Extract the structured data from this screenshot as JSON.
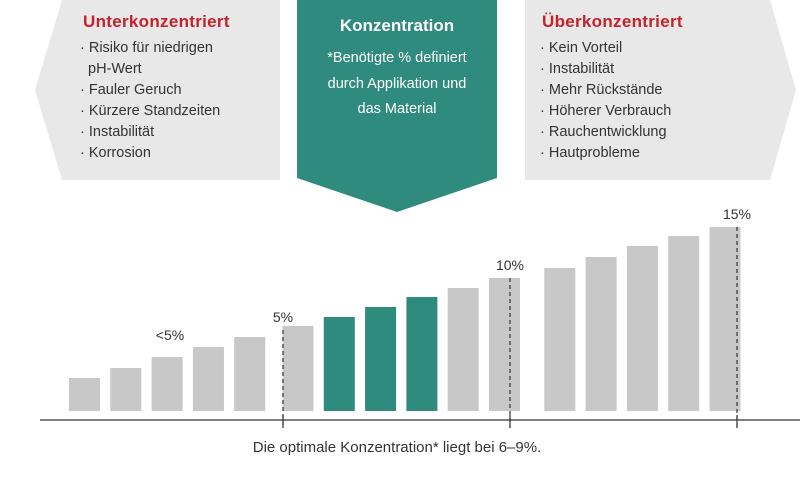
{
  "left_panel": {
    "title": "Unterkonzentriert",
    "items": [
      [
        "Risiko für niedrigen",
        "pH-Wert"
      ],
      [
        "Fauler Geruch"
      ],
      [
        "Kürzere Standzeiten"
      ],
      [
        "Instabilität"
      ],
      [
        "Korrosion"
      ]
    ]
  },
  "center_panel": {
    "title": "Konzentration",
    "lines": [
      "*Benötigte % definiert",
      "durch Applikation und",
      "das Material"
    ]
  },
  "right_panel": {
    "title": "Überkonzentriert",
    "items": [
      [
        "Kein Vorteil"
      ],
      [
        "Instabilität"
      ],
      [
        "Mehr Rückstände"
      ],
      [
        "Höherer Verbrauch"
      ],
      [
        "Rauchentwicklung"
      ],
      [
        "Hautprobleme"
      ]
    ]
  },
  "chart_data": {
    "type": "bar",
    "values": [
      33,
      43,
      54,
      64,
      74,
      85,
      94,
      104,
      114,
      123,
      133,
      143,
      154,
      165,
      175,
      184
    ],
    "colors": [
      "#c8c8c8",
      "#c8c8c8",
      "#c8c8c8",
      "#c8c8c8",
      "#c8c8c8",
      "#c8c8c8",
      "#2e8b7d",
      "#2e8b7d",
      "#2e8b7d",
      "#c8c8c8",
      "#c8c8c8",
      "#c8c8c8",
      "#c8c8c8",
      "#c8c8c8",
      "#c8c8c8",
      "#c8c8c8"
    ],
    "annotations": [
      "<5%",
      "5%",
      "10%",
      "15%"
    ],
    "caption": "Die optimale Konzentration* liegt bei 6–9%."
  }
}
